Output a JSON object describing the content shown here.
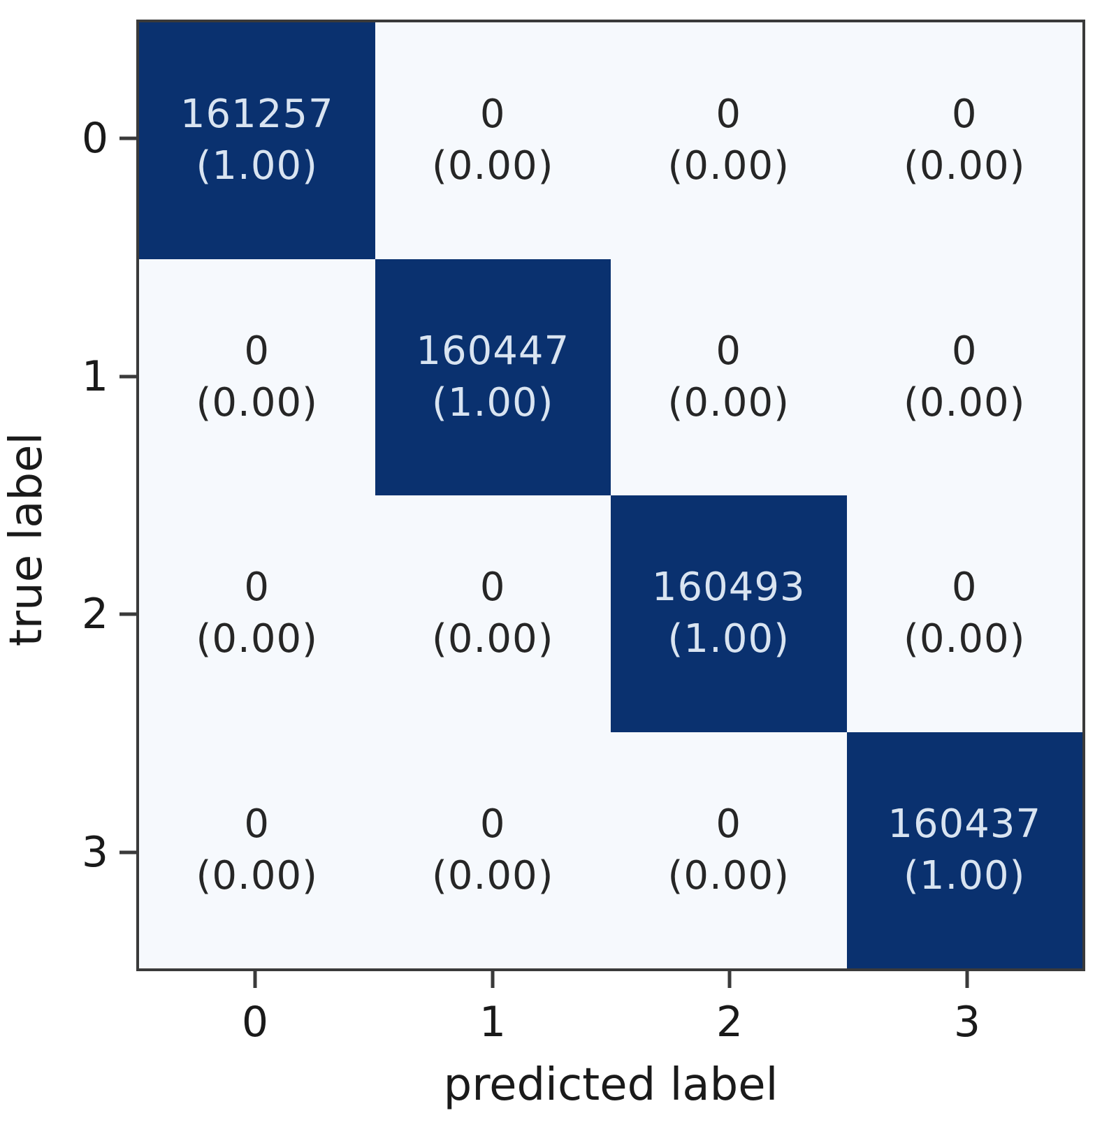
{
  "chart_data": {
    "type": "heatmap",
    "title": "",
    "xlabel": "predicted label",
    "ylabel": "true label",
    "x_tick_labels": [
      "0",
      "1",
      "2",
      "3"
    ],
    "y_tick_labels": [
      "0",
      "1",
      "2",
      "3"
    ],
    "matrix_counts": [
      [
        161257,
        0,
        0,
        0
      ],
      [
        0,
        160447,
        0,
        0
      ],
      [
        0,
        0,
        160493,
        0
      ],
      [
        0,
        0,
        0,
        160437
      ]
    ],
    "matrix_fractions": [
      [
        1.0,
        0.0,
        0.0,
        0.0
      ],
      [
        0.0,
        1.0,
        0.0,
        0.0
      ],
      [
        0.0,
        0.0,
        1.0,
        0.0
      ],
      [
        0.0,
        0.0,
        0.0,
        1.0
      ]
    ],
    "legend_position": "none",
    "grid": false,
    "cells": [
      {
        "count": "161257",
        "frac": "(1.00)"
      },
      {
        "count": "0",
        "frac": "(0.00)"
      },
      {
        "count": "0",
        "frac": "(0.00)"
      },
      {
        "count": "0",
        "frac": "(0.00)"
      },
      {
        "count": "0",
        "frac": "(0.00)"
      },
      {
        "count": "160447",
        "frac": "(1.00)"
      },
      {
        "count": "0",
        "frac": "(0.00)"
      },
      {
        "count": "0",
        "frac": "(0.00)"
      },
      {
        "count": "0",
        "frac": "(0.00)"
      },
      {
        "count": "0",
        "frac": "(0.00)"
      },
      {
        "count": "160493",
        "frac": "(1.00)"
      },
      {
        "count": "0",
        "frac": "(0.00)"
      },
      {
        "count": "0",
        "frac": "(0.00)"
      },
      {
        "count": "0",
        "frac": "(0.00)"
      },
      {
        "count": "0",
        "frac": "(0.00)"
      },
      {
        "count": "160437",
        "frac": "(1.00)"
      }
    ]
  },
  "colors": {
    "diagonal_fill": "#0a316f",
    "off_fill": "#f6f9fd",
    "diagonal_text": "#d9e4f1",
    "off_text": "#262626",
    "spine": "#3a3a3a"
  }
}
